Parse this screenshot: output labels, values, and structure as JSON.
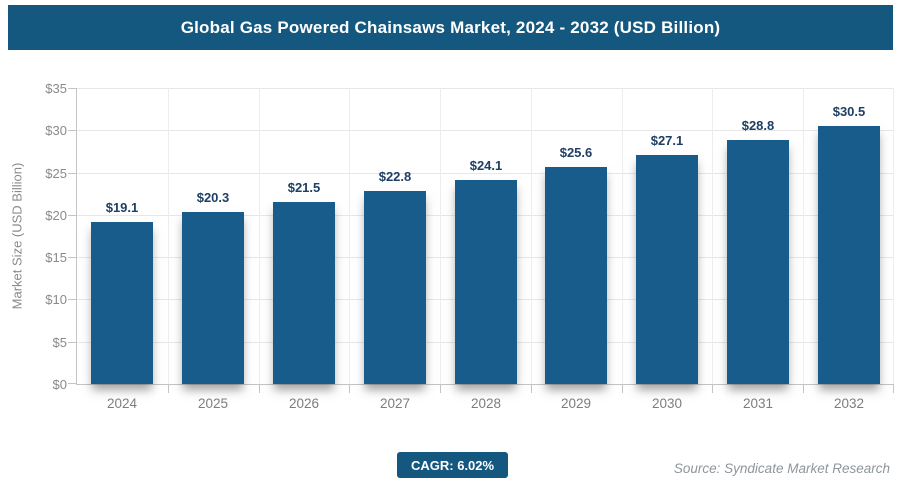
{
  "header": {
    "title": "Global Gas Powered Chainsaws Market, 2024 - 2032 (USD Billion)",
    "bg_color": "#14577f",
    "text_color": "#ffffff"
  },
  "chart_data": {
    "type": "bar",
    "title": "Global Gas Powered Chainsaws Market, 2024 - 2032 (USD Billion)",
    "categories": [
      "2024",
      "2025",
      "2026",
      "2027",
      "2028",
      "2029",
      "2030",
      "2031",
      "2032"
    ],
    "values": [
      19.1,
      20.3,
      21.5,
      22.8,
      24.1,
      25.6,
      27.1,
      28.8,
      30.5
    ],
    "value_labels": [
      "$19.1",
      "$20.3",
      "$21.5",
      "$22.8",
      "$24.1",
      "$25.6",
      "$27.1",
      "$28.8",
      "$30.5"
    ],
    "xlabel": "",
    "ylabel": "Market Size (USD Billion)",
    "ylim": [
      0,
      35
    ],
    "ytick_step": 5,
    "ytick_prefix": "$",
    "ytick_labels": [
      "$0",
      "$5",
      "$10",
      "$15",
      "$20",
      "$25",
      "$30",
      "$35"
    ],
    "grid": true,
    "legend": "none",
    "bar_color": "#175c8a",
    "value_label_color": "#1e3f63"
  },
  "footer": {
    "cagr_label": "CAGR: 6.02%",
    "source": "Source: Syndicate Market Research"
  }
}
